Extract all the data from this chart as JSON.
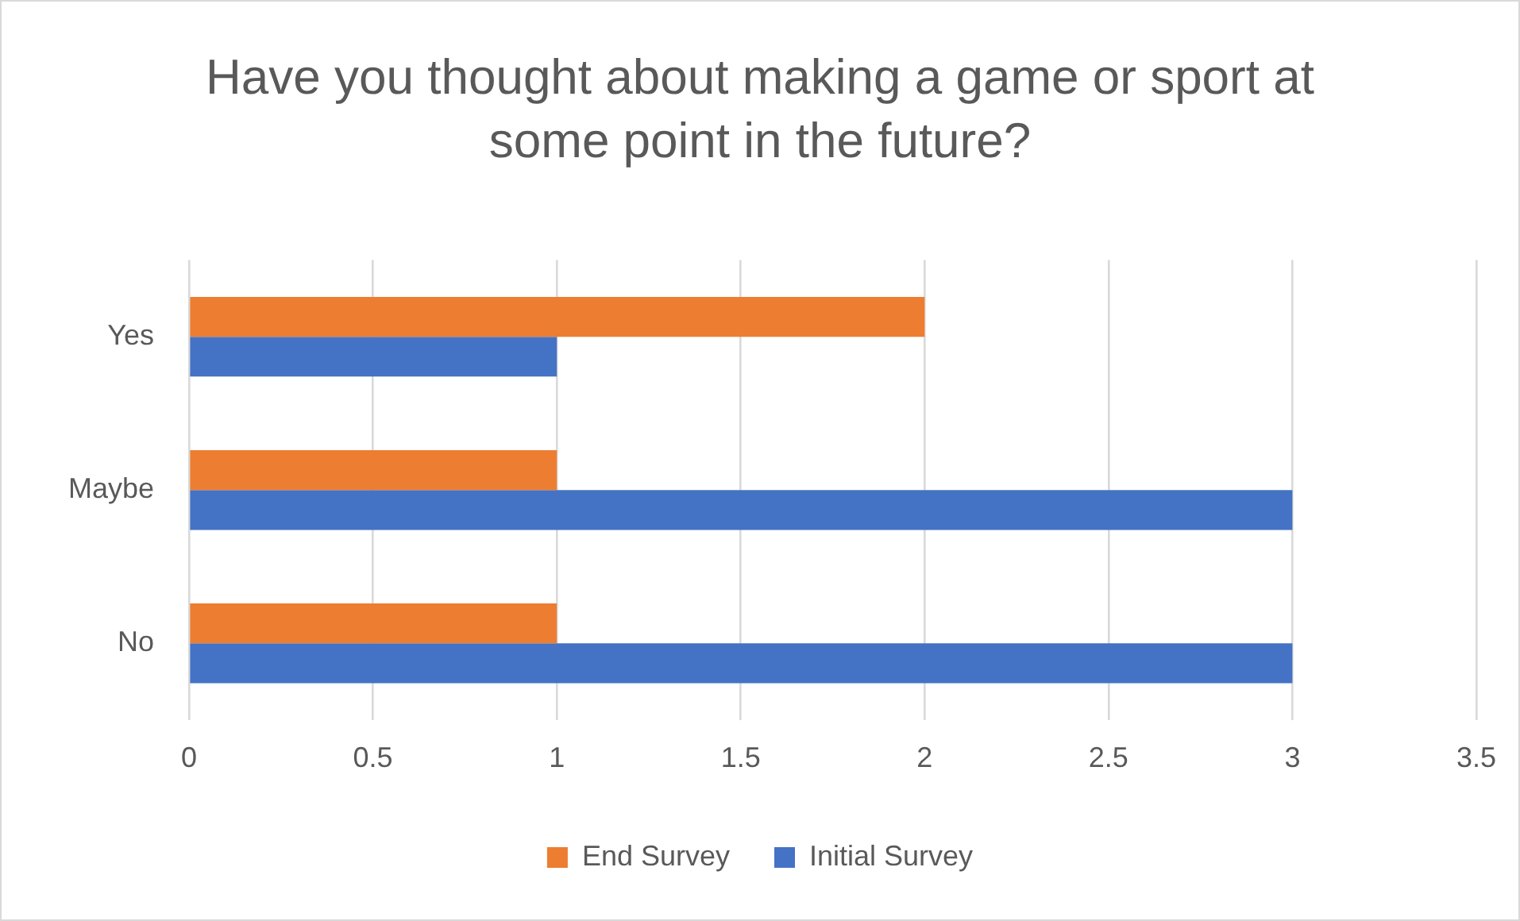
{
  "chart_data": {
    "type": "bar",
    "orientation": "horizontal",
    "title": "Have you thought about making a game or sport at some point in the future?",
    "categories": [
      "Yes",
      "Maybe",
      "No"
    ],
    "series": [
      {
        "name": "End Survey",
        "color": "#ed7d31",
        "values": [
          2,
          1,
          1
        ]
      },
      {
        "name": "Initial Survey",
        "color": "#4472c4",
        "values": [
          1,
          3,
          3
        ]
      }
    ],
    "xlim": [
      0,
      3.5
    ],
    "xticks": [
      0,
      0.5,
      1,
      1.5,
      2,
      2.5,
      3,
      3.5
    ],
    "grid": "x",
    "legend": "bottom"
  }
}
